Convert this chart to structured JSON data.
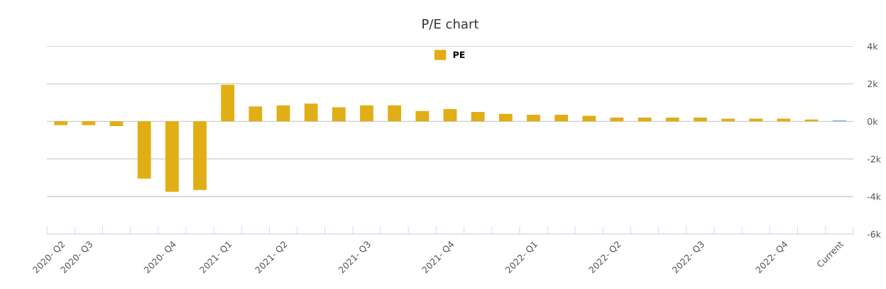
{
  "chart_data": {
    "type": "bar",
    "title": "P/E chart",
    "categories": [
      "2020- Q2",
      "2020- Q3",
      null,
      null,
      "2020- Q4",
      null,
      "2021- Q1",
      null,
      "2021- Q2",
      null,
      null,
      "2021- Q3",
      null,
      null,
      "2021- Q4",
      null,
      null,
      "2022- Q1",
      null,
      null,
      "2022- Q2",
      null,
      null,
      "2022- Q3",
      null,
      null,
      "2022- Q4",
      null,
      "Current"
    ],
    "series": [
      {
        "name": "PE",
        "color": "#e1ae15",
        "colors": [
          "#e1ae15",
          "#e1ae15",
          "#e1ae15",
          "#e1ae15",
          "#e1ae15",
          "#e1ae15",
          "#e1ae15",
          "#e1ae15",
          "#e1ae15",
          "#e1ae15",
          "#e1ae15",
          "#e1ae15",
          "#e1ae15",
          "#e1ae15",
          "#e1ae15",
          "#e1ae15",
          "#e1ae15",
          "#e1ae15",
          "#e1ae15",
          "#e1ae15",
          "#e1ae15",
          "#e1ae15",
          "#e1ae15",
          "#e1ae15",
          "#e1ae15",
          "#e1ae15",
          "#e1ae15",
          "#e1ae15",
          "#6aaed6"
        ],
        "values": [
          -200,
          -200,
          -250,
          -3050,
          -3750,
          -3650,
          1950,
          800,
          850,
          950,
          750,
          850,
          850,
          550,
          650,
          500,
          400,
          350,
          350,
          300,
          200,
          200,
          200,
          200,
          150,
          150,
          150,
          100,
          50
        ]
      }
    ],
    "ylim": [
      -6000,
      4000
    ],
    "yticks": [
      {
        "value": -6000,
        "label": "-6k"
      },
      {
        "value": -4000,
        "label": "-4k"
      },
      {
        "value": -2000,
        "label": "-2k"
      },
      {
        "value": 0,
        "label": "0k"
      },
      {
        "value": 2000,
        "label": "2k"
      },
      {
        "value": 4000,
        "label": "4k"
      }
    ],
    "grid": "y",
    "legend": "top"
  }
}
